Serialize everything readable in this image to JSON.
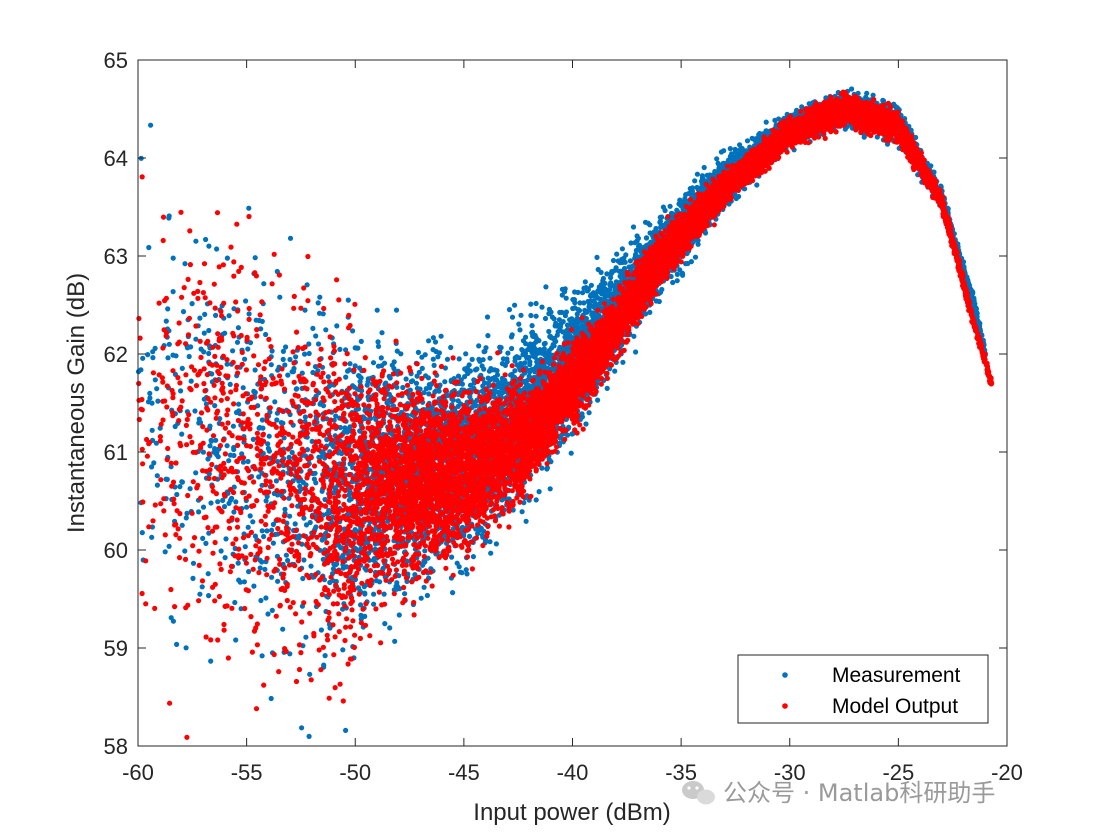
{
  "chart_data": {
    "type": "scatter",
    "xlabel": "Input power (dBm)",
    "ylabel": "Instantaneous Gain (dB)",
    "xlim": [
      -60,
      -20
    ],
    "ylim": [
      58,
      65
    ],
    "xticks": [
      "-60",
      "-55",
      "-50",
      "-45",
      "-40",
      "-35",
      "-30",
      "-25",
      "-20"
    ],
    "yticks": [
      "58",
      "59",
      "60",
      "61",
      "62",
      "63",
      "64",
      "65"
    ],
    "grid": false,
    "legend_position": "bottom-right",
    "series": [
      {
        "name": "Measurement",
        "color": "#0072BD",
        "envelope": {
          "x": [
            -60,
            -57,
            -54,
            -51,
            -48,
            -45,
            -42,
            -39,
            -36,
            -33,
            -30,
            -27.5,
            -25,
            -23,
            -21.5,
            -21
          ],
          "upper": [
            64.8,
            64.5,
            63.8,
            63.3,
            63.0,
            62.9,
            63.0,
            63.2,
            63.7,
            64.2,
            64.6,
            64.8,
            64.7,
            63.8,
            62.6,
            62.1
          ],
          "lower": [
            58.0,
            58.0,
            58.0,
            58.0,
            58.5,
            59.0,
            59.9,
            61.1,
            62.3,
            63.3,
            64.0,
            64.2,
            64.0,
            63.4,
            62.4,
            61.9
          ]
        }
      },
      {
        "name": "Model Output",
        "color": "#FF0000",
        "envelope": {
          "x": [
            -60,
            -57,
            -54,
            -51,
            -48,
            -45,
            -42,
            -39,
            -36,
            -33,
            -30,
            -27.5,
            -25,
            -23,
            -21.5,
            -20.7
          ],
          "upper": [
            64.8,
            64.4,
            63.6,
            63.0,
            62.6,
            62.2,
            62.1,
            62.6,
            63.4,
            64.0,
            64.5,
            64.8,
            64.6,
            63.7,
            62.4,
            61.8
          ],
          "lower": [
            58.0,
            58.0,
            58.0,
            58.1,
            58.8,
            59.4,
            60.2,
            61.3,
            62.5,
            63.4,
            64.0,
            64.2,
            64.0,
            63.4,
            62.2,
            61.6
          ]
        }
      }
    ]
  },
  "legend": {
    "items": [
      {
        "label": "Measurement",
        "color": "#0072BD"
      },
      {
        "label": "Model Output",
        "color": "#FF0000"
      }
    ]
  },
  "watermark": {
    "text": "公众号 · Matlab科研助手",
    "icon": "wechat-icon"
  }
}
